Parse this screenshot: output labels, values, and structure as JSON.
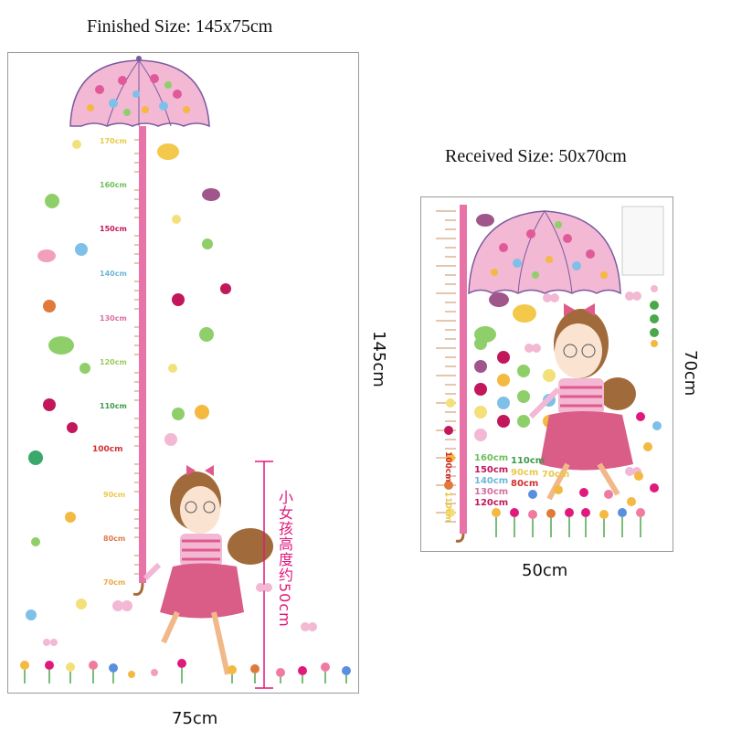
{
  "captions": {
    "finished_size": "Finished Size: 145x75cm",
    "received_size": "Received Size: 50x70cm",
    "left_width": "75cm",
    "left_height": "145cm",
    "right_width": "50cm",
    "right_height": "70cm"
  },
  "left_chart": {
    "ticks": [
      "170cm",
      "160cm",
      "150cm",
      "140cm",
      "130cm",
      "120cm",
      "110cm",
      "100cm",
      "90cm",
      "80cm",
      "70cm"
    ],
    "tick_colors": [
      "#e9c94a",
      "#6fbf5a",
      "#c2185b",
      "#6fb7d9",
      "#d96fa0",
      "#9acb5a",
      "#3d9a4a",
      "#d32f2f",
      "#e9c94a",
      "#e07a4a",
      "#e9a84a"
    ],
    "annotation": "小女孩高度约50cm"
  },
  "right_sheet": {
    "ruler_ticks": [
      "100cm",
      "110cm"
    ],
    "labels": [
      "160cm",
      "110cm",
      "150cm",
      "90cm",
      "140cm",
      "80cm",
      "70cm",
      "130cm",
      "120cm"
    ],
    "label_colors": [
      "#6fbf5a",
      "#3d9a4a",
      "#c2185b",
      "#e9c94a",
      "#6fb7d9",
      "#d32f2f",
      "#e9c94a",
      "#d96fa0",
      "#c2185b"
    ]
  },
  "colors": {
    "ruler_pink": "#e873a8",
    "umbrella_pink": "#f2b8d4",
    "dress_pink": "#d95d87",
    "annotation_magenta": "#e0197d",
    "frame_gray": "#9a9a9a"
  }
}
